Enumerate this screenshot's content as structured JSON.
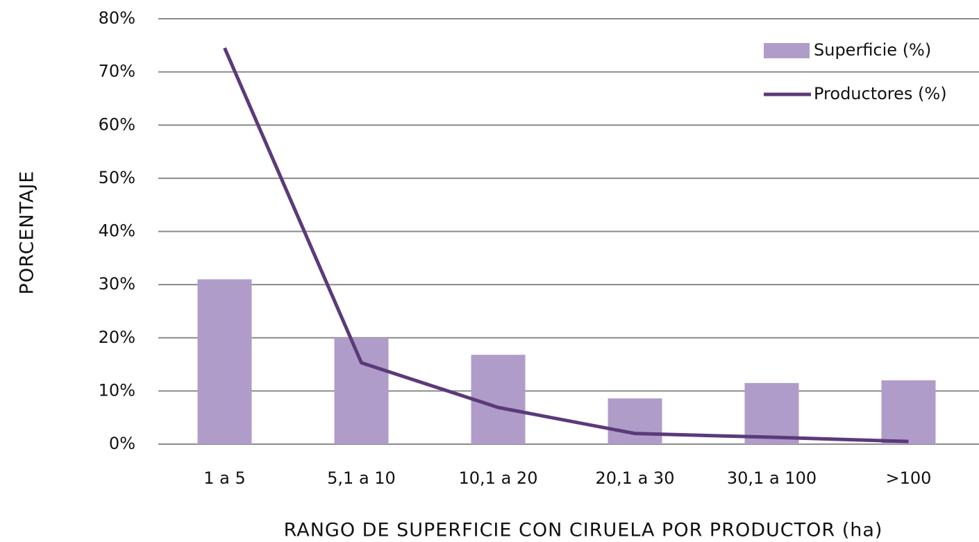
{
  "chart_data": {
    "type": "bar",
    "x_label": "RANGO DE SUPERFICIE CON CIRUELA POR PRODUCTOR (ha)",
    "y_label": "PORCENTAJE",
    "categories": [
      "1 a 5",
      "5,1 a 10",
      "10,1 a 20",
      "20,1 a 30",
      "30,1 a 100",
      ">100"
    ],
    "series": [
      {
        "name": "Superficie (%)",
        "type": "bar",
        "color": "#b09cc8",
        "values": [
          31,
          20,
          16.8,
          8.6,
          11.5,
          12
        ]
      },
      {
        "name": "Productores (%)",
        "type": "line",
        "color": "#5b3a7a",
        "values": [
          74.5,
          15.3,
          6.9,
          2,
          1.3,
          0.5
        ]
      }
    ],
    "ylim": [
      0,
      80
    ],
    "yticks": [
      {
        "value": 0,
        "label": "0%"
      },
      {
        "value": 10,
        "label": "10%"
      },
      {
        "value": 20,
        "label": "20%"
      },
      {
        "value": 30,
        "label": "30%"
      },
      {
        "value": 40,
        "label": "40%"
      },
      {
        "value": 50,
        "label": "50%"
      },
      {
        "value": 60,
        "label": "60%"
      },
      {
        "value": 70,
        "label": "70%"
      },
      {
        "value": 80,
        "label": "80%"
      }
    ],
    "grid": true,
    "legend": "upper right"
  }
}
